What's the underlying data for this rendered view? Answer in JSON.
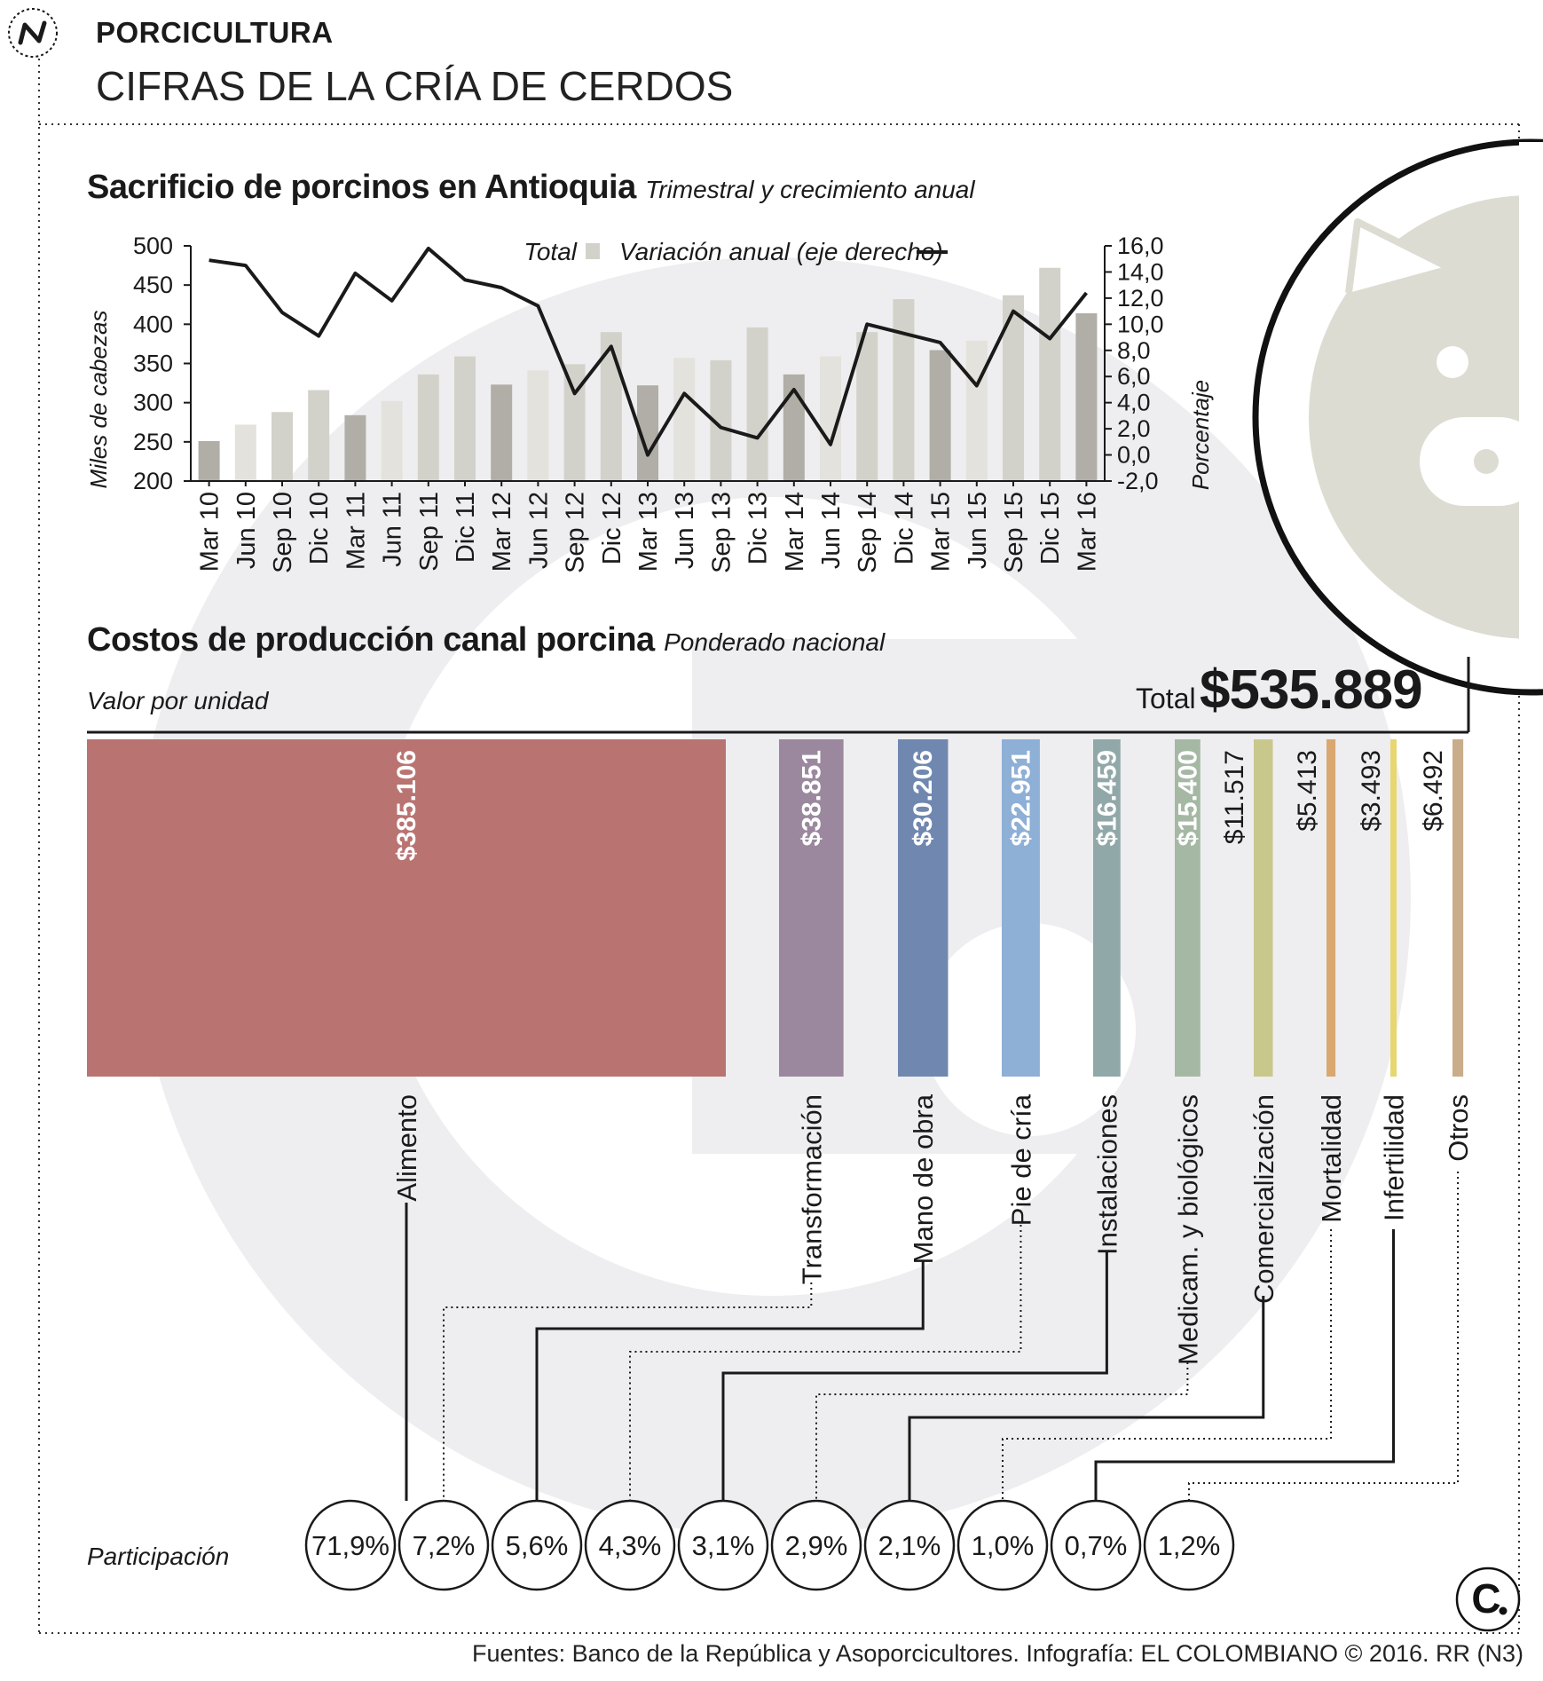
{
  "header": {
    "section": "PORCICULTURA",
    "title": "CIFRAS DE LA CRÍA DE CERDOS"
  },
  "chart1": {
    "title": "Sacrificio de porcinos en Antioquia",
    "subtitle": "Trimestral y crecimiento anual",
    "legend_total": "Total",
    "legend_variation": "Variación anual (eje derecho)",
    "y_left_label": "Miles de cabezas",
    "y_right_label": "Porcentaje"
  },
  "chart2": {
    "title": "Costos de producción canal porcina",
    "subtitle": "Ponderado nacional",
    "unit_label": "Valor por unidad",
    "total_label": "Total",
    "total_value": "$535.889",
    "participation_label": "Participación"
  },
  "footer": {
    "source": "Fuentes: Banco de la República y Asoporcicultores. Infografía: EL COLOMBIANO © 2016. RR (N3)"
  },
  "chart_data": [
    {
      "type": "bar",
      "title": "Sacrificio de porcinos en Antioquia",
      "subtitle": "Trimestral y crecimiento anual",
      "categories": [
        "Mar 10",
        "Jun 10",
        "Sep 10",
        "Dic 10",
        "Mar 11",
        "Jun 11",
        "Sep 11",
        "Dic 11",
        "Mar 12",
        "Jun 12",
        "Sep 12",
        "Dic 12",
        "Mar 13",
        "Jun 13",
        "Sep 13",
        "Dic 13",
        "Mar 14",
        "Jun 14",
        "Sep 14",
        "Dic 14",
        "Mar 15",
        "Jun 15",
        "Sep 15",
        "Dic 15",
        "Mar 16"
      ],
      "series": [
        {
          "name": "Total",
          "axis": "left",
          "type": "bar",
          "values": [
            251,
            272,
            288,
            316,
            284,
            302,
            336,
            359,
            323,
            341,
            349,
            390,
            322,
            357,
            354,
            396,
            336,
            359,
            390,
            432,
            367,
            379,
            437,
            472,
            414
          ]
        },
        {
          "name": "Variación anual (eje derecho)",
          "axis": "right",
          "type": "line",
          "values": [
            14.9,
            14.5,
            10.9,
            9.1,
            13.9,
            11.8,
            15.8,
            13.4,
            12.8,
            11.4,
            4.7,
            8.3,
            0.0,
            4.7,
            2.1,
            1.3,
            5.0,
            0.8,
            10.0,
            9.3,
            8.6,
            5.3,
            11.0,
            8.9,
            12.4
          ]
        }
      ],
      "ylabel": "Miles de cabezas",
      "ylim": [
        200,
        500
      ],
      "yticks": [
        "200",
        "250",
        "300",
        "350",
        "400",
        "450",
        "500"
      ],
      "y2label": "Porcentaje",
      "y2lim": [
        -2.0,
        16.0
      ],
      "y2ticks": [
        "-2,0",
        "0,0",
        "2,0",
        "4,0",
        "6,0",
        "8,0",
        "10,0",
        "12,0",
        "14,0",
        "16,0"
      ],
      "bar_colors": {
        "light": "#e3e2dc",
        "mid": "#d3d2ca",
        "dark": "#b0aea6"
      },
      "line_color": "#1a1a1a"
    },
    {
      "type": "bar",
      "title": "Costos de producción canal porcina",
      "subtitle": "Ponderado nacional",
      "categories": [
        "Alimento",
        "Transformación",
        "Mano de obra",
        "Pie de cría",
        "Instalaciones",
        "Medicam. y biológicos",
        "Comercialización",
        "Mortalidad",
        "Infertilidad",
        "Otros"
      ],
      "values_label": [
        "$385.106",
        "$38.851",
        "$30.206",
        "$22.951",
        "$16.459",
        "$15.400",
        "$11.517",
        "$5.413",
        "$3.493",
        "$6.492"
      ],
      "values": [
        385106,
        38851,
        30206,
        22951,
        16459,
        15400,
        11517,
        5413,
        3493,
        6492
      ],
      "participation": [
        "71,9%",
        "7,2%",
        "5,6%",
        "4,3%",
        "3,1%",
        "2,9%",
        "2,1%",
        "1,0%",
        "0,7%",
        "1,2%"
      ],
      "total": "$535.889",
      "colors": [
        "#b97371",
        "#9b889e",
        "#7087b0",
        "#8eafd6",
        "#91a8a9",
        "#a5b8a4",
        "#c9c88c",
        "#d9a870",
        "#e8d670",
        "#c9ad8b"
      ]
    }
  ]
}
